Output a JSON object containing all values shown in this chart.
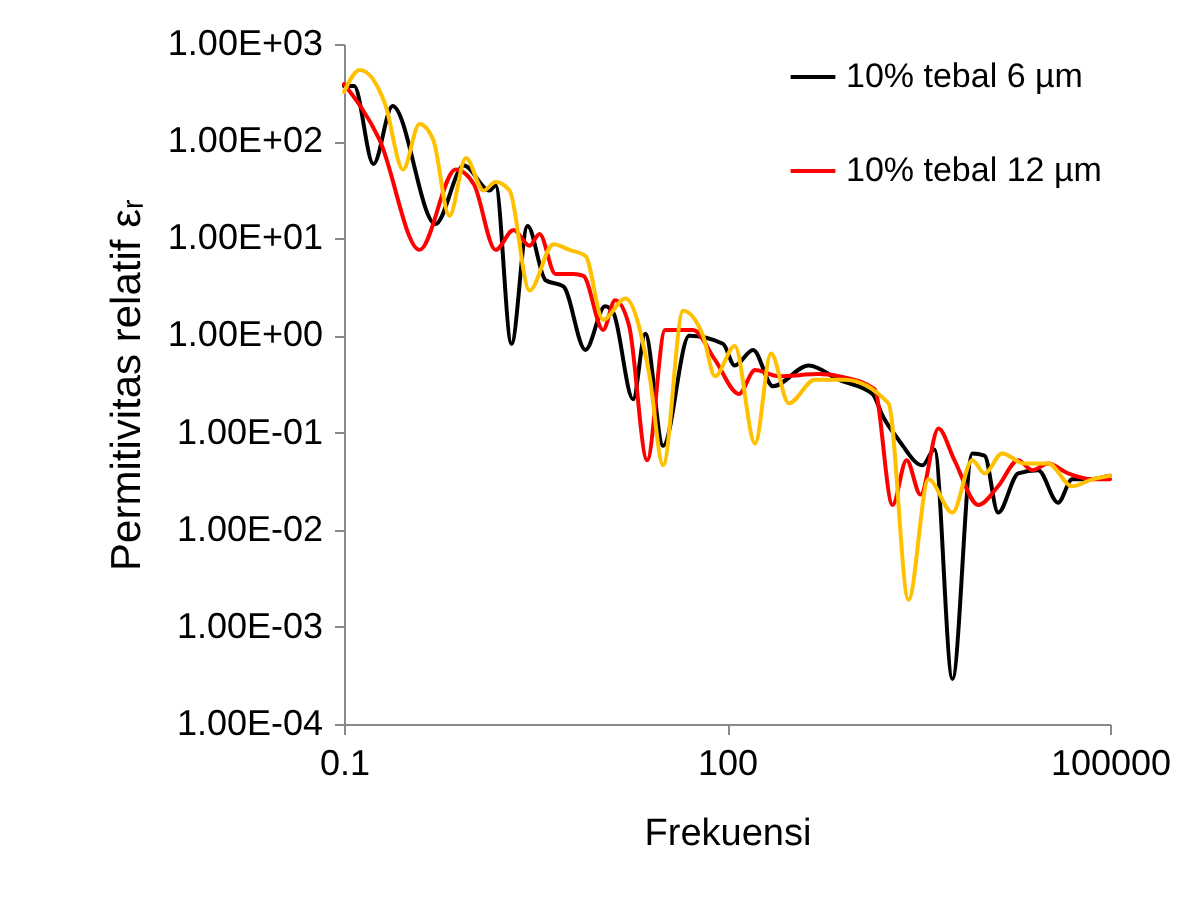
{
  "chart_data": {
    "type": "line",
    "xlabel": "Frekuensi",
    "ylabel": "Permitivitas relatif εᵣ",
    "log": "xy",
    "legend": "top right",
    "line_style": "solid",
    "marker": "none",
    "xlim": [
      0.1,
      100000
    ],
    "xticks": [
      0.1,
      100,
      100000
    ],
    "ylim": [
      0.0001,
      1000
    ],
    "yticks": [
      {
        "value": 0.0001,
        "label": "1.00E-04"
      },
      {
        "value": 0.001,
        "label": "1.00E-03"
      },
      {
        "value": 0.01,
        "label": "1.00E-02"
      },
      {
        "value": 0.1,
        "label": "1.00E-01"
      },
      {
        "value": 1,
        "label": "1.00E+00"
      },
      {
        "value": 10,
        "label": "1.00E+01"
      },
      {
        "value": 100,
        "label": "1.00E+02"
      },
      {
        "value": 1000,
        "label": "1.00E+03"
      }
    ],
    "series": [
      {
        "name": "10% tebal 6 µm",
        "color": "#000000",
        "x": [
          0.1,
          0.12,
          0.17,
          0.24,
          0.52,
          0.87,
          1.38,
          1.54,
          2.05,
          2.74,
          3.79,
          5.23,
          7.78,
          11.1,
          12.9,
          18.4,
          22.9,
          31.6,
          50.5,
          93,
          115,
          160,
          229,
          437,
          750,
          1380,
          1650,
          2210,
          3400,
          4220,
          5830,
          8350,
          10400,
          13300,
          19100,
          27400,
          39200,
          50500,
          67300,
          100000
        ],
        "values": [
          370,
          370,
          58,
          230,
          14,
          56,
          31,
          35,
          0.82,
          13.4,
          3.7,
          3.2,
          0.71,
          2.0,
          1.7,
          0.22,
          1.04,
          0.073,
          0.99,
          0.82,
          0.49,
          0.71,
          0.3,
          0.49,
          0.35,
          0.25,
          0.15,
          0.084,
          0.046,
          0.067,
          0.00029,
          0.061,
          0.058,
          0.015,
          0.038,
          0.041,
          0.019,
          0.033,
          0.033,
          0.036
        ]
      },
      {
        "name": "10% tebal 12 µm",
        "color": "#ff0000",
        "x": [
          0.1,
          0.19,
          0.39,
          0.75,
          1.04,
          1.54,
          2.13,
          2.84,
          3.4,
          4.53,
          6.26,
          7.5,
          10.7,
          13.3,
          17.1,
          23.7,
          32.8,
          54.2,
          80.6,
          124,
          166,
          255,
          523,
          835,
          1430,
          1980,
          2550,
          3280,
          4530,
          6040,
          9310,
          13300,
          19100,
          24600,
          32800,
          47000,
          72300,
          100000
        ],
        "values": [
          387,
          103,
          7.6,
          51,
          36,
          7.6,
          12.2,
          8.4,
          11.1,
          4.3,
          4.3,
          4.1,
          1.14,
          2.3,
          1.26,
          0.052,
          1.14,
          1.14,
          0.56,
          0.25,
          0.44,
          0.38,
          0.4,
          0.37,
          0.28,
          0.018,
          0.052,
          0.023,
          0.11,
          0.052,
          0.018,
          0.028,
          0.052,
          0.041,
          0.048,
          0.038,
          0.033,
          0.033
        ]
      },
      {
        "color": "#ffc000",
        "x": [
          0.1,
          0.133,
          0.21,
          0.29,
          0.39,
          0.5,
          0.67,
          0.9,
          1.24,
          1.54,
          1.98,
          2.84,
          4.37,
          5.83,
          7.78,
          10.7,
          16,
          24.6,
          31.6,
          45.3,
          64.9,
          80.6,
          115,
          166,
          221,
          305,
          487,
          835,
          1840,
          2640,
          3790,
          5830,
          8350,
          10400,
          14300,
          21300,
          32800,
          50500,
          72300,
          100000
        ],
        "values": [
          321,
          541,
          241,
          51,
          150,
          103,
          17,
          67,
          31,
          38,
          31,
          2.9,
          8.7,
          7.6,
          6.6,
          1.45,
          2.4,
          0.4,
          0.046,
          1.8,
          0.99,
          0.38,
          0.78,
          0.077,
          0.65,
          0.2,
          0.35,
          0.35,
          0.2,
          0.0019,
          0.033,
          0.015,
          0.052,
          0.038,
          0.061,
          0.048,
          0.048,
          0.028,
          0.033,
          0.036
        ]
      }
    ]
  }
}
